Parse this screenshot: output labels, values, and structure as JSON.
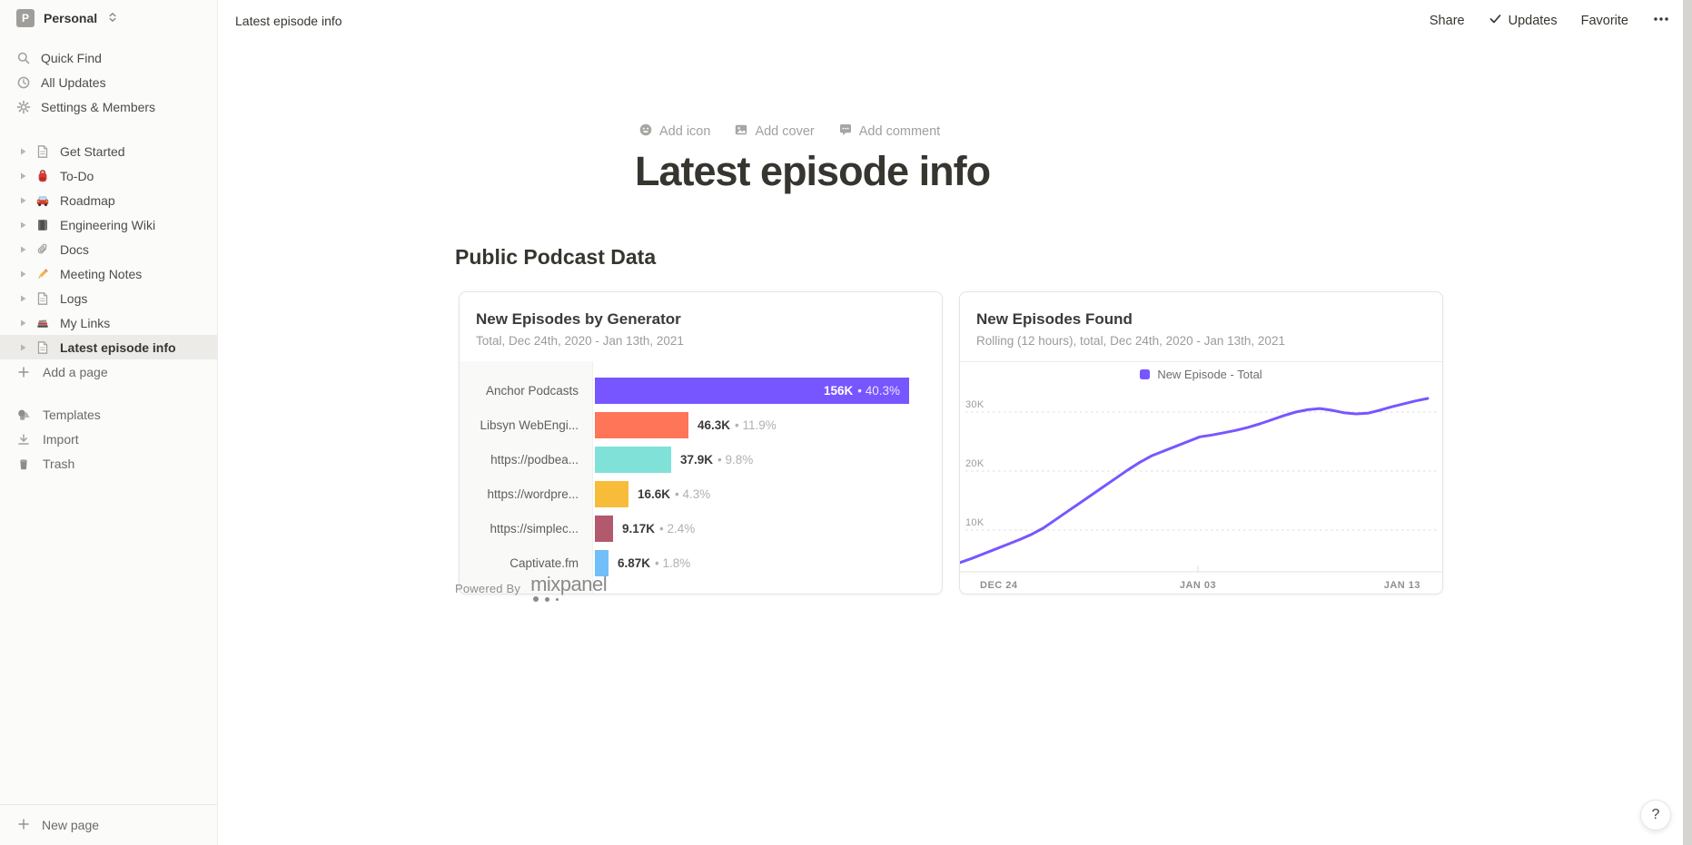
{
  "workspace": {
    "name": "Personal",
    "avatar_letter": "P"
  },
  "sidebar": {
    "nav": [
      {
        "label": "Quick Find",
        "icon": "search-icon"
      },
      {
        "label": "All Updates",
        "icon": "clock-icon"
      },
      {
        "label": "Settings & Members",
        "icon": "gear-icon"
      }
    ],
    "pages": [
      {
        "label": "Get Started",
        "icon": "page-icon",
        "selected": false
      },
      {
        "label": "To-Do",
        "icon": "backpack-icon",
        "selected": false
      },
      {
        "label": "Roadmap",
        "icon": "car-icon",
        "selected": false
      },
      {
        "label": "Engineering Wiki",
        "icon": "notebook-icon",
        "selected": false
      },
      {
        "label": "Docs",
        "icon": "paperclip-icon",
        "selected": false
      },
      {
        "label": "Meeting Notes",
        "icon": "pencil-icon",
        "selected": false
      },
      {
        "label": "Logs",
        "icon": "page-icon",
        "selected": false
      },
      {
        "label": "My Links",
        "icon": "books-icon",
        "selected": false
      },
      {
        "label": "Latest episode info",
        "icon": "page-icon",
        "selected": true
      }
    ],
    "add_page_label": "Add a page",
    "tools": [
      {
        "label": "Templates",
        "icon": "templates-icon"
      },
      {
        "label": "Import",
        "icon": "import-icon"
      },
      {
        "label": "Trash",
        "icon": "trash-icon"
      }
    ],
    "new_page_label": "New page"
  },
  "topbar": {
    "breadcrumb": "Latest episode info",
    "share_label": "Share",
    "updates_label": "Updates",
    "favorite_label": "Favorite"
  },
  "page": {
    "add_icon_label": "Add icon",
    "add_cover_label": "Add cover",
    "add_comment_label": "Add comment",
    "title": "Latest episode info",
    "section_heading": "Public Podcast Data",
    "powered_by": "Powered By",
    "powered_by_brand": "mixpanel",
    "help_label": "?"
  },
  "chart_data": [
    {
      "type": "bar",
      "orientation": "horizontal",
      "title": "New Episodes by Generator",
      "subtitle": "Total, Dec 24th, 2020 - Jan 13th, 2021",
      "categories": [
        "Anchor Podcasts",
        "Libsyn WebEngi...",
        "https://podbea...",
        "https://wordpre...",
        "https://simplec...",
        "Captivate.fm"
      ],
      "values": [
        156000,
        46300,
        37900,
        16600,
        9170,
        6870
      ],
      "value_labels": [
        "156K",
        "46.3K",
        "37.9K",
        "16.6K",
        "9.17K",
        "6.87K"
      ],
      "pct_labels": [
        "40.3%",
        "11.9%",
        "9.8%",
        "4.3%",
        "2.4%",
        "1.8%"
      ],
      "bar_colors": [
        "#7856FF",
        "#FF7557",
        "#80E1D9",
        "#F8BC3B",
        "#B2596E",
        "#72BEF8"
      ],
      "xlim": [
        0,
        160000
      ],
      "grid": false
    },
    {
      "type": "line",
      "title": "New Episodes Found",
      "subtitle": "Rolling (12 hours), total, Dec 24th, 2020 - Jan 13th, 2021",
      "legend": [
        {
          "label": "New Episode - Total",
          "color": "#7856FF"
        }
      ],
      "legend_position": "top-center",
      "x_tick_labels": [
        "DEC 24",
        "JAN 03",
        "JAN 13"
      ],
      "y_ticks": [
        10000,
        20000,
        30000
      ],
      "y_tick_labels": [
        "10K",
        "20K",
        "30K"
      ],
      "ylim": [
        3000,
        33500
      ],
      "x_range_days": [
        0,
        20
      ],
      "values": [
        4500,
        5200,
        6000,
        6800,
        7600,
        8400,
        9300,
        10400,
        11800,
        13200,
        14600,
        16000,
        17400,
        18800,
        20200,
        21500,
        22600,
        23400,
        24200,
        25000,
        25800,
        26100,
        26500,
        26900,
        27400,
        28000,
        28700,
        29400,
        30000,
        30400,
        30600,
        30300,
        29900,
        29700,
        29800,
        30300,
        30900,
        31400,
        31900,
        32300
      ],
      "line_color": "#7856FF",
      "grid": "dashed-horizontal"
    }
  ]
}
